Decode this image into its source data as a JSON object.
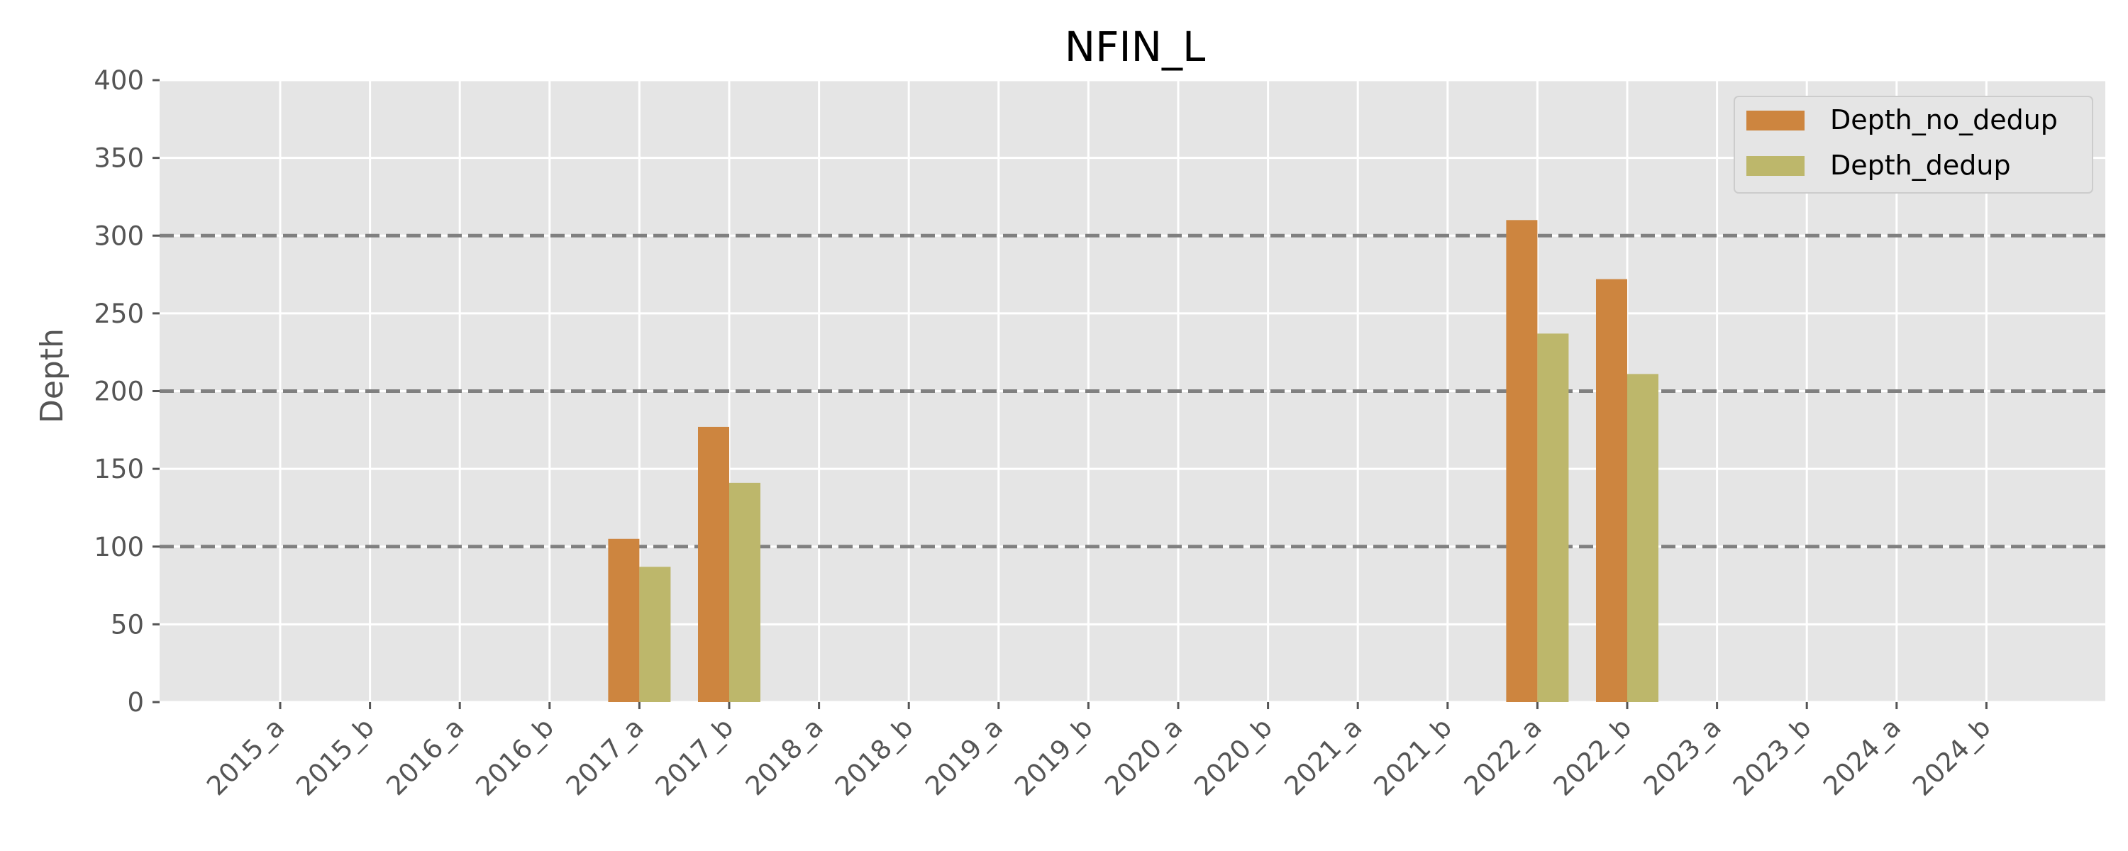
{
  "chart_data": {
    "type": "bar",
    "title": "NFIN_L",
    "xlabel": "",
    "ylabel": "Depth",
    "ylim": [
      0,
      400
    ],
    "yticks": [
      0,
      50,
      100,
      150,
      200,
      250,
      300,
      350,
      400
    ],
    "categories": [
      "2015_a",
      "2015_b",
      "2016_a",
      "2016_b",
      "2017_a",
      "2017_b",
      "2018_a",
      "2018_b",
      "2019_a",
      "2019_b",
      "2020_a",
      "2020_b",
      "2021_a",
      "2021_b",
      "2022_a",
      "2022_b",
      "2023_a",
      "2023_b",
      "2024_a",
      "2024_b"
    ],
    "series": [
      {
        "name": "Depth_no_dedup",
        "color": "#cd853f",
        "values": [
          0,
          0,
          0,
          0,
          105,
          177,
          0,
          0,
          0,
          0,
          0,
          0,
          0,
          0,
          310,
          272,
          0,
          0,
          0,
          0
        ]
      },
      {
        "name": "Depth_dedup",
        "color": "#bdb76b",
        "values": [
          0,
          0,
          0,
          0,
          87,
          141,
          0,
          0,
          0,
          0,
          0,
          0,
          0,
          0,
          237,
          211,
          0,
          0,
          0,
          0
        ]
      }
    ],
    "reference_lines": [
      100,
      200,
      300
    ],
    "reference_line_color": "#808080",
    "grid": true,
    "legend_position": "top-right",
    "background_color": "#e5e5e5"
  }
}
